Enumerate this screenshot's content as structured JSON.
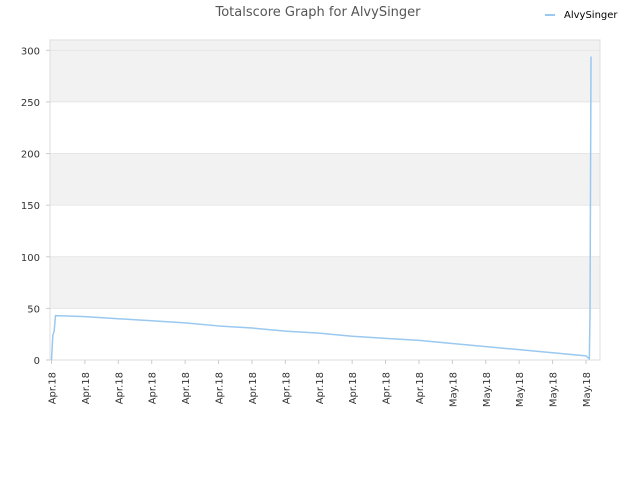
{
  "chart_data": {
    "type": "line",
    "title": "Totalscore Graph for AlvySinger",
    "xlabel": "",
    "ylabel": "",
    "ylim": [
      0,
      310
    ],
    "yticks": [
      0,
      50,
      100,
      150,
      200,
      250,
      300
    ],
    "grid": true,
    "legend_position": "top-right",
    "x_tick_labels": [
      "Apr.18",
      "Apr.18",
      "Apr.18",
      "Apr.18",
      "Apr.18",
      "Apr.18",
      "Apr.18",
      "Apr.18",
      "Apr.18",
      "Apr.18",
      "Apr.18",
      "Apr.18",
      "May.18",
      "May.18",
      "May.18",
      "May.18",
      "May.18"
    ],
    "series": [
      {
        "name": "AlvySinger",
        "color": "#99c8f0",
        "x": [
          0,
          0.04,
          0.08,
          0.12,
          1,
          2,
          3,
          4,
          5,
          6,
          7,
          8,
          9,
          10,
          11,
          12,
          13,
          14,
          15,
          16,
          16.1,
          16.12,
          16.15
        ],
        "y": [
          0,
          24,
          28,
          43,
          42,
          40,
          38,
          36,
          33,
          31,
          28,
          26,
          23,
          21,
          19,
          16,
          13,
          10,
          7,
          4,
          1,
          45,
          294
        ]
      }
    ]
  }
}
